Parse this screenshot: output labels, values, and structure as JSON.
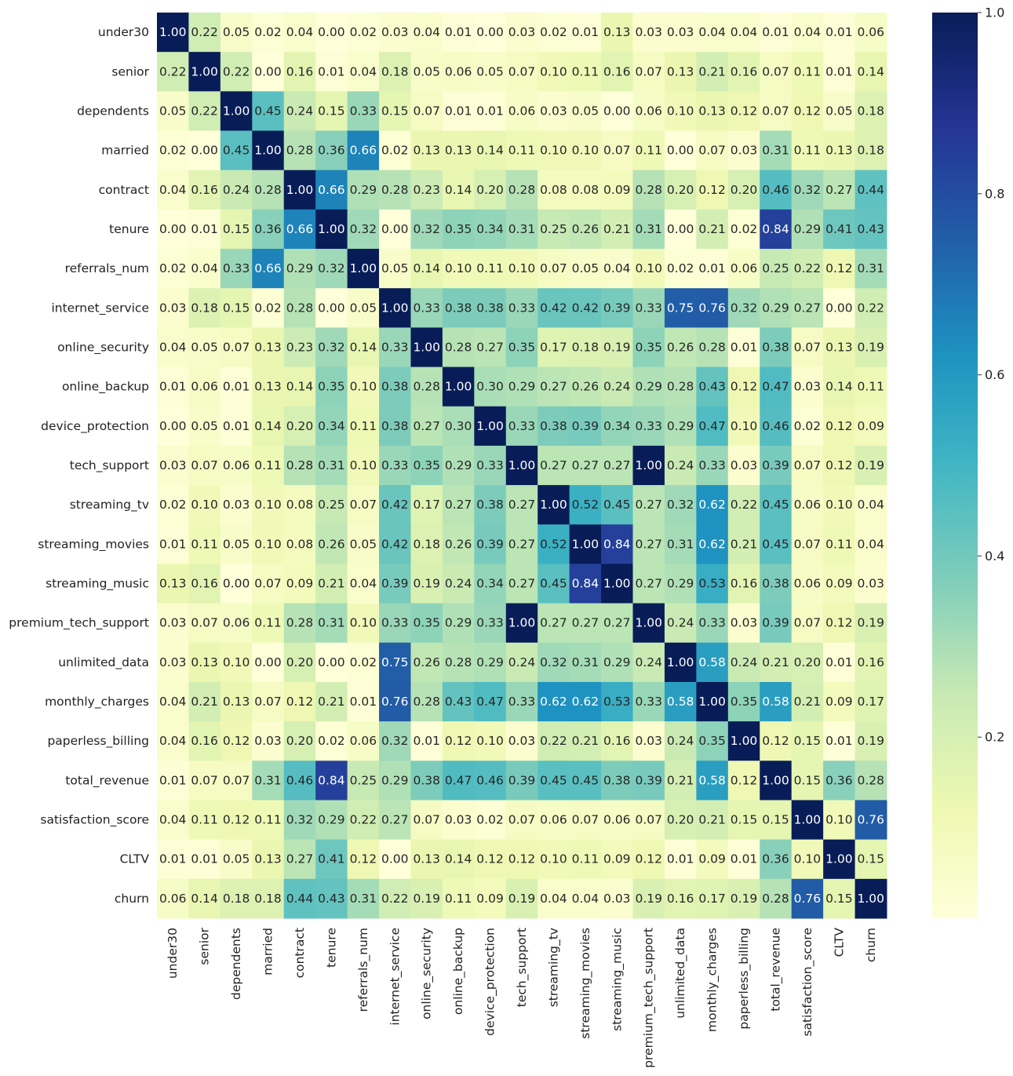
{
  "chart_data": {
    "type": "heatmap",
    "title": "",
    "xlabel": "",
    "ylabel": "",
    "labels": [
      "under30",
      "senior",
      "dependents",
      "married",
      "contract",
      "tenure",
      "referrals_num",
      "internet_service",
      "online_security",
      "online_backup",
      "device_protection",
      "tech_support",
      "streaming_tv",
      "streaming_movies",
      "streaming_music",
      "premium_tech_support",
      "unlimited_data",
      "monthly_charges",
      "paperless_billing",
      "total_revenue",
      "satisfaction_score",
      "CLTV",
      "churn"
    ],
    "matrix": [
      [
        1.0,
        0.22,
        0.05,
        0.02,
        0.04,
        0.0,
        0.02,
        0.03,
        0.04,
        0.01,
        0.0,
        0.03,
        0.02,
        0.01,
        0.13,
        0.03,
        0.03,
        0.04,
        0.04,
        0.01,
        0.04,
        0.01,
        0.06
      ],
      [
        0.22,
        1.0,
        0.22,
        0.0,
        0.16,
        0.01,
        0.04,
        0.18,
        0.05,
        0.06,
        0.05,
        0.07,
        0.1,
        0.11,
        0.16,
        0.07,
        0.13,
        0.21,
        0.16,
        0.07,
        0.11,
        0.01,
        0.14
      ],
      [
        0.05,
        0.22,
        1.0,
        0.45,
        0.24,
        0.15,
        0.33,
        0.15,
        0.07,
        0.01,
        0.01,
        0.06,
        0.03,
        0.05,
        0.0,
        0.06,
        0.1,
        0.13,
        0.12,
        0.07,
        0.12,
        0.05,
        0.18
      ],
      [
        0.02,
        0.0,
        0.45,
        1.0,
        0.28,
        0.36,
        0.66,
        0.02,
        0.13,
        0.13,
        0.14,
        0.11,
        0.1,
        0.1,
        0.07,
        0.11,
        0.0,
        0.07,
        0.03,
        0.31,
        0.11,
        0.13,
        0.18
      ],
      [
        0.04,
        0.16,
        0.24,
        0.28,
        1.0,
        0.66,
        0.29,
        0.28,
        0.23,
        0.14,
        0.2,
        0.28,
        0.08,
        0.08,
        0.09,
        0.28,
        0.2,
        0.12,
        0.2,
        0.46,
        0.32,
        0.27,
        0.44
      ],
      [
        0.0,
        0.01,
        0.15,
        0.36,
        0.66,
        1.0,
        0.32,
        0.0,
        0.32,
        0.35,
        0.34,
        0.31,
        0.25,
        0.26,
        0.21,
        0.31,
        0.0,
        0.21,
        0.02,
        0.84,
        0.29,
        0.41,
        0.43
      ],
      [
        0.02,
        0.04,
        0.33,
        0.66,
        0.29,
        0.32,
        1.0,
        0.05,
        0.14,
        0.1,
        0.11,
        0.1,
        0.07,
        0.05,
        0.04,
        0.1,
        0.02,
        0.01,
        0.06,
        0.25,
        0.22,
        0.12,
        0.31
      ],
      [
        0.03,
        0.18,
        0.15,
        0.02,
        0.28,
        0.0,
        0.05,
        1.0,
        0.33,
        0.38,
        0.38,
        0.33,
        0.42,
        0.42,
        0.39,
        0.33,
        0.75,
        0.76,
        0.32,
        0.29,
        0.27,
        0.0,
        0.22
      ],
      [
        0.04,
        0.05,
        0.07,
        0.13,
        0.23,
        0.32,
        0.14,
        0.33,
        1.0,
        0.28,
        0.27,
        0.35,
        0.17,
        0.18,
        0.19,
        0.35,
        0.26,
        0.28,
        0.01,
        0.38,
        0.07,
        0.13,
        0.19
      ],
      [
        0.01,
        0.06,
        0.01,
        0.13,
        0.14,
        0.35,
        0.1,
        0.38,
        0.28,
        1.0,
        0.3,
        0.29,
        0.27,
        0.26,
        0.24,
        0.29,
        0.28,
        0.43,
        0.12,
        0.47,
        0.03,
        0.14,
        0.11
      ],
      [
        0.0,
        0.05,
        0.01,
        0.14,
        0.2,
        0.34,
        0.11,
        0.38,
        0.27,
        0.3,
        1.0,
        0.33,
        0.38,
        0.39,
        0.34,
        0.33,
        0.29,
        0.47,
        0.1,
        0.46,
        0.02,
        0.12,
        0.09
      ],
      [
        0.03,
        0.07,
        0.06,
        0.11,
        0.28,
        0.31,
        0.1,
        0.33,
        0.35,
        0.29,
        0.33,
        1.0,
        0.27,
        0.27,
        0.27,
        1.0,
        0.24,
        0.33,
        0.03,
        0.39,
        0.07,
        0.12,
        0.19
      ],
      [
        0.02,
        0.1,
        0.03,
        0.1,
        0.08,
        0.25,
        0.07,
        0.42,
        0.17,
        0.27,
        0.38,
        0.27,
        1.0,
        0.52,
        0.45,
        0.27,
        0.32,
        0.62,
        0.22,
        0.45,
        0.06,
        0.1,
        0.04
      ],
      [
        0.01,
        0.11,
        0.05,
        0.1,
        0.08,
        0.26,
        0.05,
        0.42,
        0.18,
        0.26,
        0.39,
        0.27,
        0.52,
        1.0,
        0.84,
        0.27,
        0.31,
        0.62,
        0.21,
        0.45,
        0.07,
        0.11,
        0.04
      ],
      [
        0.13,
        0.16,
        0.0,
        0.07,
        0.09,
        0.21,
        0.04,
        0.39,
        0.19,
        0.24,
        0.34,
        0.27,
        0.45,
        0.84,
        1.0,
        0.27,
        0.29,
        0.53,
        0.16,
        0.38,
        0.06,
        0.09,
        0.03
      ],
      [
        0.03,
        0.07,
        0.06,
        0.11,
        0.28,
        0.31,
        0.1,
        0.33,
        0.35,
        0.29,
        0.33,
        1.0,
        0.27,
        0.27,
        0.27,
        1.0,
        0.24,
        0.33,
        0.03,
        0.39,
        0.07,
        0.12,
        0.19
      ],
      [
        0.03,
        0.13,
        0.1,
        0.0,
        0.2,
        0.0,
        0.02,
        0.75,
        0.26,
        0.28,
        0.29,
        0.24,
        0.32,
        0.31,
        0.29,
        0.24,
        1.0,
        0.58,
        0.24,
        0.21,
        0.2,
        0.01,
        0.16
      ],
      [
        0.04,
        0.21,
        0.13,
        0.07,
        0.12,
        0.21,
        0.01,
        0.76,
        0.28,
        0.43,
        0.47,
        0.33,
        0.62,
        0.62,
        0.53,
        0.33,
        0.58,
        1.0,
        0.35,
        0.58,
        0.21,
        0.09,
        0.17
      ],
      [
        0.04,
        0.16,
        0.12,
        0.03,
        0.2,
        0.02,
        0.06,
        0.32,
        0.01,
        0.12,
        0.1,
        0.03,
        0.22,
        0.21,
        0.16,
        0.03,
        0.24,
        0.35,
        1.0,
        0.12,
        0.15,
        0.01,
        0.19
      ],
      [
        0.01,
        0.07,
        0.07,
        0.31,
        0.46,
        0.84,
        0.25,
        0.29,
        0.38,
        0.47,
        0.46,
        0.39,
        0.45,
        0.45,
        0.38,
        0.39,
        0.21,
        0.58,
        0.12,
        1.0,
        0.15,
        0.36,
        0.28
      ],
      [
        0.04,
        0.11,
        0.12,
        0.11,
        0.32,
        0.29,
        0.22,
        0.27,
        0.07,
        0.03,
        0.02,
        0.07,
        0.06,
        0.07,
        0.06,
        0.07,
        0.2,
        0.21,
        0.15,
        0.15,
        1.0,
        0.1,
        0.76
      ],
      [
        0.01,
        0.01,
        0.05,
        0.13,
        0.27,
        0.41,
        0.12,
        0.0,
        0.13,
        0.14,
        0.12,
        0.12,
        0.1,
        0.11,
        0.09,
        0.12,
        0.01,
        0.09,
        0.01,
        0.36,
        0.1,
        1.0,
        0.15
      ],
      [
        0.06,
        0.14,
        0.18,
        0.18,
        0.44,
        0.43,
        0.31,
        0.22,
        0.19,
        0.11,
        0.09,
        0.19,
        0.04,
        0.04,
        0.03,
        0.19,
        0.16,
        0.17,
        0.19,
        0.28,
        0.76,
        0.15,
        1.0
      ]
    ],
    "value_format": "0.00",
    "colormap": "YlGnBu",
    "vmin": 0.0,
    "vmax": 1.0,
    "colorbar_ticks": [
      0.2,
      0.4,
      0.6,
      0.8,
      1.0
    ],
    "colorbar_tick_labels": [
      "0.2",
      "0.4",
      "0.6",
      "0.8",
      "1.0"
    ],
    "grid": false,
    "legend": "colorbar-right"
  }
}
